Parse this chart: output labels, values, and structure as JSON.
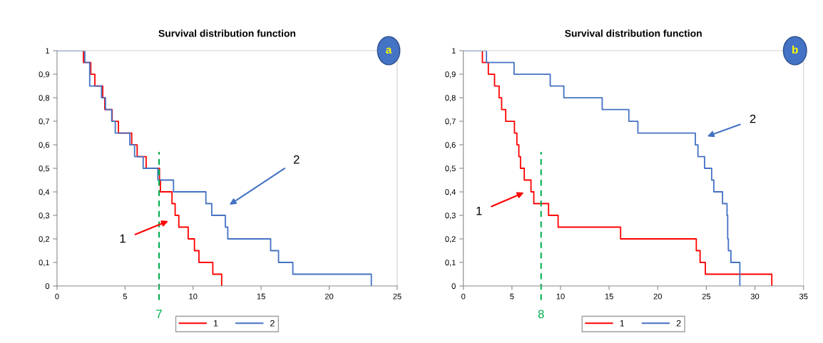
{
  "chart_data": [
    {
      "type": "step",
      "title": "Survival distribution function",
      "series": [
        {
          "name": "1",
          "color": "#ff0000",
          "x": [
            0,
            1.94,
            2.48,
            2.78,
            3.36,
            3.51,
            4.05,
            4.51,
            5.49,
            5.89,
            6.55,
            7.53,
            7.6,
            8.45,
            8.68,
            8.95,
            9.64,
            10.1,
            10.43,
            11.45,
            12.1
          ],
          "values": [
            1,
            0.95,
            0.9,
            0.85,
            0.8,
            0.75,
            0.7,
            0.65,
            0.6,
            0.55,
            0.5,
            0.45,
            0.4,
            0.35,
            0.3,
            0.25,
            0.2,
            0.15,
            0.1,
            0.05,
            0
          ]
        },
        {
          "name": "2",
          "color": "#4472c4",
          "x": [
            0,
            2.04,
            2.4,
            3.27,
            3.56,
            4.02,
            4.28,
            5.35,
            5.7,
            6.33,
            7.41,
            8.56,
            10.94,
            11.37,
            12.37,
            12.55,
            15.7,
            16.28,
            17.33,
            23.1
          ],
          "values": [
            1,
            0.95,
            0.85,
            0.8,
            0.75,
            0.7,
            0.65,
            0.6,
            0.55,
            0.5,
            0.45,
            0.4,
            0.35,
            0.3,
            0.25,
            0.2,
            0.15,
            0.1,
            0.05,
            0
          ]
        }
      ],
      "xlim": [
        0,
        25
      ],
      "xticks": [
        0,
        5,
        10,
        15,
        20,
        25
      ],
      "ylim": [
        0,
        1
      ],
      "yticks": [
        0,
        {
          "value": 0.1,
          "label": "0,1"
        },
        {
          "value": 0.2,
          "label": "0,2"
        },
        {
          "value": 0.3,
          "label": "0,3"
        },
        {
          "value": 0.4,
          "label": "0,4"
        },
        {
          "value": 0.5,
          "label": "0,5"
        },
        {
          "value": 0.6,
          "label": "0,6"
        },
        {
          "value": 0.7,
          "label": "0,7"
        },
        {
          "value": 0.8,
          "label": "0,8"
        },
        {
          "value": 0.9,
          "label": "0,9"
        },
        1
      ],
      "ref_lines": [
        {
          "axis": "x",
          "value": 7.5,
          "label": "7",
          "color": "#00b050",
          "line_style": "dashed"
        }
      ],
      "annotations": [
        "a",
        "1",
        "2"
      ],
      "legend": "bottom",
      "grid": false,
      "line_style": "solid",
      "marker": "none"
    },
    {
      "type": "step",
      "title": "Survival distribution function",
      "series": [
        {
          "name": "1",
          "color": "#ff0000",
          "x": [
            0,
            1.96,
            2.57,
            3.21,
            3.68,
            3.94,
            4.36,
            5.26,
            5.51,
            5.71,
            5.88,
            6.27,
            6.96,
            7.25,
            8.77,
            9.75,
            16.18,
            23.97,
            24.36,
            24.9,
            31.74
          ],
          "values": [
            1,
            0.95,
            0.9,
            0.85,
            0.8,
            0.75,
            0.7,
            0.65,
            0.6,
            0.55,
            0.5,
            0.45,
            0.4,
            0.35,
            0.3,
            0.25,
            0.2,
            0.15,
            0.1,
            0.05,
            0
          ]
        },
        {
          "name": "2",
          "color": "#4472c4",
          "x": [
            0,
            2.38,
            5.22,
            8.94,
            10.34,
            14.29,
            17.03,
            17.96,
            23.87,
            24.14,
            24.82,
            25.55,
            25.77,
            26.67,
            27.13,
            27.2,
            27.27,
            27.53,
            28.45
          ],
          "values": [
            1,
            0.95,
            0.9,
            0.85,
            0.8,
            0.75,
            0.7,
            0.65,
            0.6,
            0.55,
            0.5,
            0.45,
            0.4,
            0.35,
            0.3,
            0.2,
            0.15,
            0.1,
            0
          ]
        }
      ],
      "xlim": [
        0,
        35
      ],
      "xticks": [
        0,
        5,
        10,
        15,
        20,
        25,
        30,
        35
      ],
      "ylim": [
        0,
        1
      ],
      "yticks": [
        0,
        {
          "value": 0.1,
          "label": "0,1"
        },
        {
          "value": 0.2,
          "label": "0,2"
        },
        {
          "value": 0.3,
          "label": "0,3"
        },
        {
          "value": 0.4,
          "label": "0,4"
        },
        {
          "value": 0.5,
          "label": "0,5"
        },
        {
          "value": 0.6,
          "label": "0,6"
        },
        {
          "value": 0.7,
          "label": "0,7"
        },
        {
          "value": 0.8,
          "label": "0,8"
        },
        {
          "value": 0.9,
          "label": "0,9"
        },
        1
      ],
      "ref_lines": [
        {
          "axis": "x",
          "value": 8,
          "label": "8",
          "color": "#00b050",
          "line_style": "dashed"
        }
      ],
      "annotations": [
        "b",
        "1",
        "2"
      ],
      "legend": "bottom",
      "grid": false,
      "line_style": "solid",
      "marker": "none"
    }
  ]
}
